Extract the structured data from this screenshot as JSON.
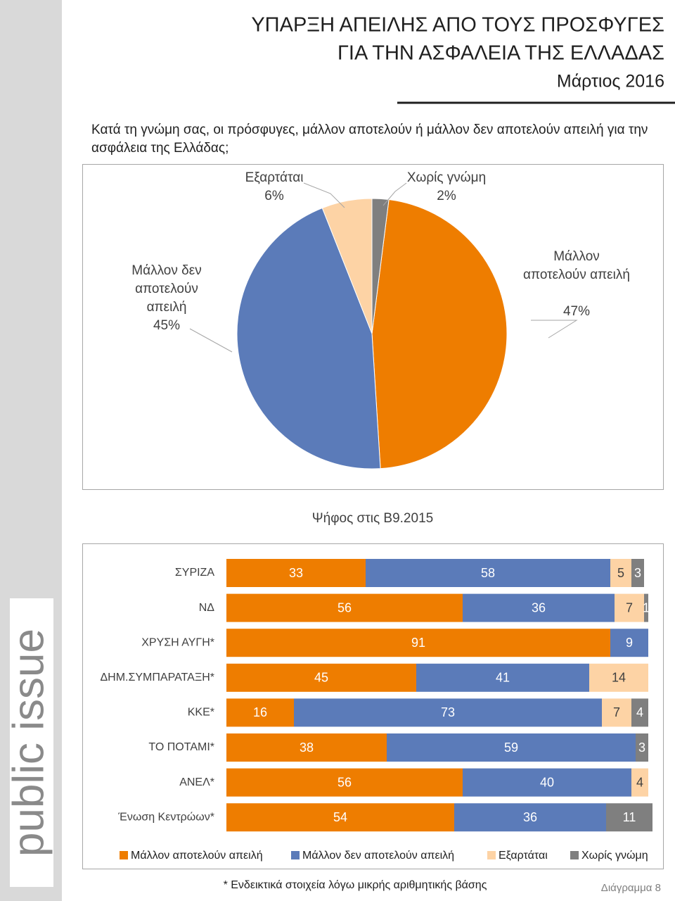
{
  "header": {
    "title_lines": [
      "ΥΠΑΡΞΗ ΑΠΕΙΛΗΣ ΑΠΟ ΤΟΥΣ ΠΡΟΣΦΥΓΕΣ",
      "ΓΙΑ ΤΗΝ ΑΣΦΑΛΕΙΑ ΤΗΣ ΕΛΛΑΔΑΣ"
    ],
    "date": "Μάρτιος 2016"
  },
  "sidebar": {
    "brand": "public issue"
  },
  "chart_data": [
    {
      "type": "pie",
      "title": "Κατά τη γνώμη σας, οι πρόσφυγες, μάλλον αποτελούν ή μάλλον δεν αποτελούν απειλή για την ασφάλεια της Ελλάδας;",
      "categories": [
        "Μάλλον αποτελούν απειλή",
        "Μάλλον δεν αποτελούν απειλή",
        "Εξαρτάται",
        "Χωρίς γνώμη"
      ],
      "values": [
        47,
        45,
        6,
        2
      ],
      "value_labels": [
        "47%",
        "45%",
        "6%",
        "2%"
      ],
      "colors": [
        "#ee7d00",
        "#5b7bb9",
        "#fdd3a5",
        "#7f7f7f"
      ]
    },
    {
      "type": "stacked-bar-horizontal",
      "title": "Ψήφος στις Β9.2015",
      "categories": [
        "ΣΥΡΙΖΑ",
        "ΝΔ",
        "ΧΡΥΣΗ ΑΥΓΗ*",
        "ΔΗΜ.ΣΥΜΠΑΡΑΤΑΞΗ*",
        "ΚΚΕ*",
        "ΤΟ ΠΟΤΑΜΙ*",
        "ΑΝΕΛ*",
        "Ένωση Κεντρώων*"
      ],
      "xlim": [
        0,
        100
      ],
      "legend": "bottom",
      "series": [
        {
          "name": "Μάλλον αποτελούν απειλή",
          "color": "#ee7d00",
          "label_color": "#ffffff",
          "values": [
            33,
            56,
            91,
            45,
            16,
            38,
            56,
            54
          ]
        },
        {
          "name": "Μάλλον δεν αποτελούν απειλή",
          "color": "#5b7bb9",
          "label_color": "#ffffff",
          "values": [
            58,
            36,
            9,
            41,
            73,
            59,
            40,
            36
          ]
        },
        {
          "name": "Εξαρτάται",
          "color": "#fdd3a5",
          "label_color": "#404040",
          "values": [
            5,
            7,
            null,
            14,
            7,
            null,
            4,
            null
          ]
        },
        {
          "name": "Χωρίς γνώμη",
          "color": "#7f7f7f",
          "label_color": "#ffffff",
          "values": [
            3,
            1,
            null,
            null,
            4,
            3,
            null,
            11
          ]
        }
      ]
    }
  ],
  "footer": {
    "note": "* Ενδεικτικά στοιχεία λόγω μικρής αριθμητικής βάσης",
    "page": "Διάγραμμα 8"
  }
}
